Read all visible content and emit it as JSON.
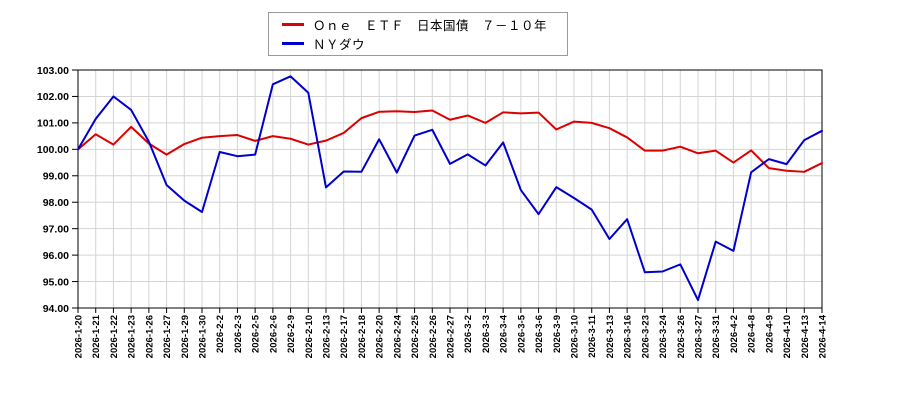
{
  "legend": {
    "items": [
      {
        "label": "Ｏｎｅ　ＥＴＦ　日本国債　７－１０年",
        "color": "#dd0000"
      },
      {
        "label": "ＮＹダウ",
        "color": "#0000cc"
      }
    ]
  },
  "chart_data": {
    "type": "line",
    "title": "",
    "xlabel": "",
    "ylabel": "",
    "ylim": [
      94,
      103
    ],
    "ytick_step": 1,
    "ytick_labels": [
      "103.00",
      "102.00",
      "101.00",
      "100.00",
      "99.00",
      "98.00",
      "97.00",
      "96.00",
      "95.00",
      "94.00"
    ],
    "grid": true,
    "legend_position": "top-center",
    "categories": [
      "2026-1-20",
      "2026-1-21",
      "2026-1-22",
      "2026-1-23",
      "2026-1-26",
      "2026-1-27",
      "2026-1-29",
      "2026-1-30",
      "2026-2-2",
      "2026-2-3",
      "2026-2-5",
      "2026-2-6",
      "2026-2-9",
      "2026-2-10",
      "2026-2-13",
      "2026-2-17",
      "2026-2-18",
      "2026-2-20",
      "2026-2-24",
      "2026-2-25",
      "2026-2-26",
      "2026-2-27",
      "2026-3-2",
      "2026-3-3",
      "2026-3-4",
      "2026-3-5",
      "2026-3-6",
      "2026-3-9",
      "2026-3-10",
      "2026-3-11",
      "2026-3-13",
      "2026-3-16",
      "2026-3-23",
      "2026-3-24",
      "2026-3-26",
      "2026-3-27",
      "2026-3-31",
      "2026-4-2",
      "2026-4-8",
      "2026-4-9",
      "2026-4-10",
      "2026-4-13",
      "2026-4-14"
    ],
    "series": [
      {
        "name": "Ｏｎｅ　ＥＴＦ　日本国債　７－１０年",
        "color": "#dd0000",
        "values": [
          100.0,
          100.57,
          100.18,
          100.85,
          100.22,
          99.8,
          100.2,
          100.44,
          100.5,
          100.54,
          100.32,
          100.5,
          100.4,
          100.18,
          100.33,
          100.62,
          101.18,
          101.42,
          101.44,
          101.41,
          101.47,
          101.12,
          101.28,
          101.0,
          101.4,
          101.36,
          101.39,
          100.75,
          101.05,
          101.0,
          100.8,
          100.45,
          99.95,
          99.95,
          100.1,
          99.85,
          99.95,
          99.5,
          99.96,
          99.29,
          99.19,
          99.15,
          99.48
        ]
      },
      {
        "name": "ＮＹダウ",
        "color": "#0000cc",
        "values": [
          100.0,
          101.15,
          102.0,
          101.49,
          100.29,
          98.65,
          98.06,
          97.63,
          99.9,
          99.74,
          99.8,
          102.46,
          102.76,
          102.14,
          98.56,
          99.16,
          99.15,
          100.38,
          99.12,
          100.52,
          100.74,
          99.45,
          99.81,
          99.39,
          100.26,
          98.46,
          97.55,
          98.57,
          98.16,
          97.72,
          96.61,
          97.36,
          95.35,
          95.38,
          95.65,
          94.3,
          96.51,
          96.16,
          99.13,
          99.63,
          99.44,
          100.35,
          100.7
        ]
      }
    ]
  }
}
